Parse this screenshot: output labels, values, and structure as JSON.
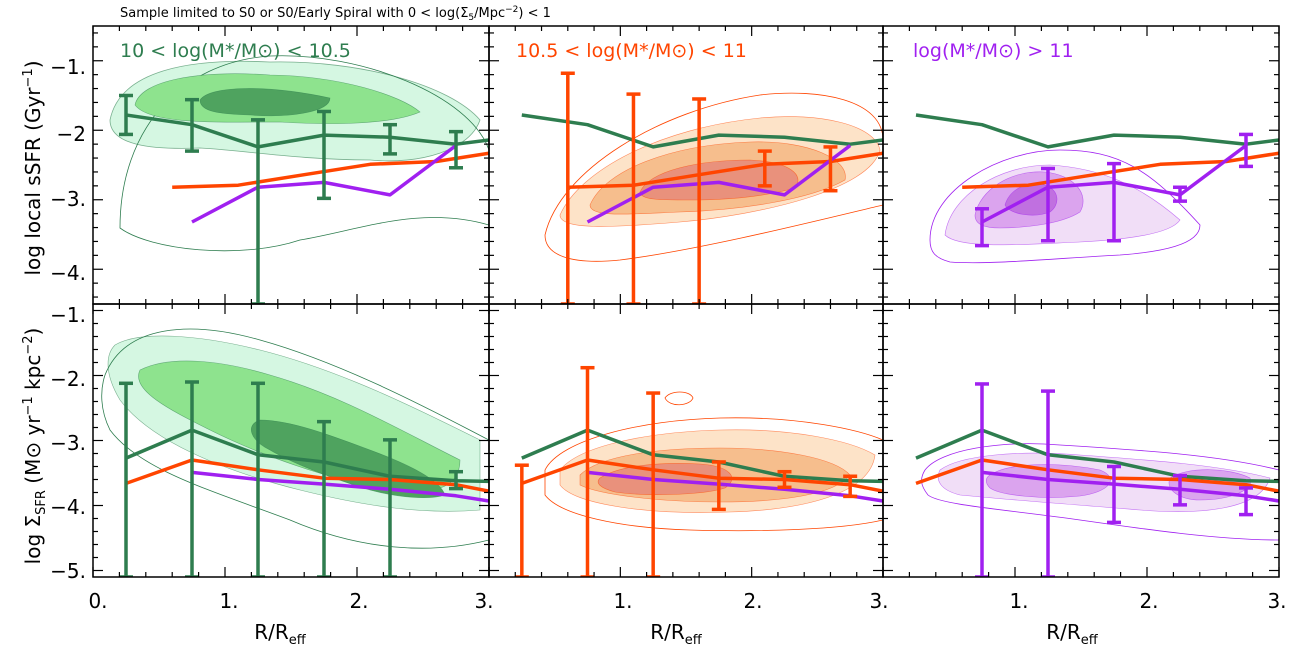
{
  "figure": {
    "title": "Sample limited to S0 or S0/Early Spiral with 0 < log(Σ5/Mpc⁻²) < 1",
    "title_parts": {
      "pre": "Sample limited to S0 or S0/Early Spiral with 0 < log(Σ",
      "sub": "5",
      "mid": "/Mpc",
      "sup": "−2",
      "post": ") < 1"
    }
  },
  "colors": {
    "green": "#2e7d4f",
    "orange": "#ff4500",
    "purple": "#a020f0",
    "green_fill_light": "#d5f7e2",
    "green_fill_mid": "#8ee38e",
    "green_fill_dark": "#4fa35f",
    "orange_fill_light": "#fde3c8",
    "orange_fill_mid": "#f6be8d",
    "orange_fill_dark": "#e9917c",
    "purple_fill_light": "#f1def7",
    "purple_fill_mid": "#dba4ee",
    "purple_fill_dark": "#c070e0"
  },
  "axes": {
    "xlabel_main": "R/R",
    "xlabel_sub": "eff",
    "x_ticks": [
      "0.",
      "1.",
      "2.",
      "3."
    ],
    "top_ylabel_main": "log local sSFR (Gyr",
    "top_ylabel_sup": "−1",
    "top_ylabel_end": ")",
    "top_y_ticks": [
      "−1.",
      "−2",
      "−3.",
      "−4."
    ],
    "bottom_ylabel_main": "log Σ",
    "bottom_ylabel_sub": "SFR",
    "bottom_ylabel_rest": " (M⊙ yr",
    "bottom_ylabel_sup1": "−1",
    "bottom_ylabel_rest2": " kpc",
    "bottom_ylabel_sup2": "−2",
    "bottom_ylabel_end": ")",
    "bottom_y_ticks": [
      "−1.",
      "−2.",
      "−3.",
      "−4.",
      "−5."
    ]
  },
  "panel_labels": [
    {
      "text": "10 < log(M*/M⊙) < 10.5",
      "color_key": "green"
    },
    {
      "text": "10.5 < log(M*/M⊙) < 11",
      "color_key": "orange"
    },
    {
      "text": "log(M*/M⊙) > 11",
      "color_key": "purple"
    }
  ],
  "chart_data": [
    {
      "type": "line",
      "row": "top",
      "column": 1,
      "xlim": [
        0,
        3
      ],
      "ylim": [
        -4.5,
        -0.5
      ],
      "xlabel": "R/Reff",
      "ylabel": "log local sSFR (Gyr^-1)",
      "series": [
        {
          "color_key": "green",
          "x": [
            0.25,
            0.75,
            1.25,
            1.75,
            2.25,
            2.75,
            3.0
          ],
          "y": [
            -1.78,
            -1.92,
            -2.24,
            -2.07,
            -2.1,
            -2.2,
            -2.14
          ]
        },
        {
          "color_key": "orange",
          "x": [
            0.6,
            1.1,
            1.6,
            2.1,
            2.6,
            3.0
          ],
          "y": [
            -2.82,
            -2.79,
            -2.64,
            -2.49,
            -2.45,
            -2.33
          ]
        },
        {
          "color_key": "purple",
          "x": [
            0.75,
            1.25,
            1.75,
            2.25,
            2.75
          ],
          "y": [
            -3.32,
            -2.82,
            -2.75,
            -2.93,
            -2.22
          ]
        }
      ],
      "errorbars": {
        "color_key": "green",
        "points": [
          {
            "x": 0.25,
            "y": -1.78,
            "lo": -2.06,
            "hi": -1.5
          },
          {
            "x": 0.75,
            "y": -1.92,
            "lo": -2.3,
            "hi": -1.56
          },
          {
            "x": 1.25,
            "y": -2.24,
            "lo": -4.5,
            "hi": -1.85
          },
          {
            "x": 1.75,
            "y": -2.07,
            "lo": -2.98,
            "hi": -1.73
          },
          {
            "x": 2.25,
            "y": -2.1,
            "lo": -2.34,
            "hi": -1.92
          },
          {
            "x": 2.75,
            "y": -2.2,
            "lo": -2.54,
            "hi": -2.02
          }
        ]
      },
      "contours": {
        "color_key": "green",
        "center": [
          1.6,
          -1.6
        ],
        "note": "density contours of individual spaxels"
      }
    },
    {
      "type": "line",
      "row": "top",
      "column": 2,
      "xlim": [
        0,
        3
      ],
      "ylim": [
        -4.5,
        -0.5
      ],
      "series": [
        {
          "color_key": "green",
          "x": [
            0.25,
            0.75,
            1.25,
            1.75,
            2.25,
            2.75,
            3.0
          ],
          "y": [
            -1.78,
            -1.92,
            -2.24,
            -2.07,
            -2.1,
            -2.2,
            -2.14
          ]
        },
        {
          "color_key": "orange",
          "x": [
            0.6,
            1.1,
            1.6,
            2.1,
            2.6,
            3.0
          ],
          "y": [
            -2.82,
            -2.79,
            -2.64,
            -2.49,
            -2.45,
            -2.33
          ]
        },
        {
          "color_key": "purple",
          "x": [
            0.75,
            1.25,
            1.75,
            2.25,
            2.75
          ],
          "y": [
            -3.32,
            -2.82,
            -2.75,
            -2.93,
            -2.22
          ]
        }
      ],
      "errorbars": {
        "color_key": "orange",
        "points": [
          {
            "x": 0.6,
            "y": -2.82,
            "lo": -4.5,
            "hi": -1.18
          },
          {
            "x": 1.1,
            "y": -2.79,
            "lo": -4.5,
            "hi": -1.48
          },
          {
            "x": 1.6,
            "y": -2.64,
            "lo": -4.5,
            "hi": -1.55
          },
          {
            "x": 2.1,
            "y": -2.49,
            "lo": -2.8,
            "hi": -2.3
          },
          {
            "x": 2.6,
            "y": -2.45,
            "lo": -2.87,
            "hi": -2.24
          }
        ]
      }
    },
    {
      "type": "line",
      "row": "top",
      "column": 3,
      "xlim": [
        0,
        3
      ],
      "ylim": [
        -4.5,
        -0.5
      ],
      "series": [
        {
          "color_key": "green",
          "x": [
            0.25,
            0.75,
            1.25,
            1.75,
            2.25,
            2.75,
            3.0
          ],
          "y": [
            -1.78,
            -1.92,
            -2.24,
            -2.07,
            -2.1,
            -2.2,
            -2.14
          ]
        },
        {
          "color_key": "orange",
          "x": [
            0.6,
            1.1,
            1.6,
            2.1,
            2.6,
            3.0
          ],
          "y": [
            -2.82,
            -2.79,
            -2.64,
            -2.49,
            -2.45,
            -2.33
          ]
        },
        {
          "color_key": "purple",
          "x": [
            0.75,
            1.25,
            1.75,
            2.25,
            2.75
          ],
          "y": [
            -3.32,
            -2.82,
            -2.75,
            -2.93,
            -2.22
          ]
        }
      ],
      "errorbars": {
        "color_key": "purple",
        "points": [
          {
            "x": 0.75,
            "y": -3.32,
            "lo": -3.66,
            "hi": -3.13
          },
          {
            "x": 1.25,
            "y": -2.82,
            "lo": -3.59,
            "hi": -2.55
          },
          {
            "x": 1.75,
            "y": -2.75,
            "lo": -3.59,
            "hi": -2.48
          },
          {
            "x": 2.25,
            "y": -2.93,
            "lo": -3.02,
            "hi": -2.82
          },
          {
            "x": 2.75,
            "y": -2.22,
            "lo": -2.52,
            "hi": -2.06
          }
        ]
      }
    },
    {
      "type": "line",
      "row": "bottom",
      "column": 1,
      "xlim": [
        0,
        3
      ],
      "ylim": [
        -5.1,
        -0.9
      ],
      "xlabel": "R/Reff",
      "ylabel": "log ΣSFR (M⊙ yr^-1 kpc^-2)",
      "series": [
        {
          "color_key": "green",
          "x": [
            0.25,
            0.75,
            1.25,
            1.75,
            2.25,
            2.75,
            3.0
          ],
          "y": [
            -3.27,
            -2.84,
            -3.22,
            -3.33,
            -3.55,
            -3.62,
            -3.63
          ]
        },
        {
          "color_key": "orange",
          "x": [
            0.25,
            0.75,
            1.25,
            1.75,
            2.25,
            2.75,
            3.0
          ],
          "y": [
            -3.66,
            -3.3,
            -3.45,
            -3.58,
            -3.6,
            -3.68,
            -3.78
          ]
        },
        {
          "color_key": "purple",
          "x": [
            0.75,
            1.25,
            1.75,
            2.25,
            2.75,
            3.0
          ],
          "y": [
            -3.49,
            -3.6,
            -3.67,
            -3.75,
            -3.85,
            -3.93
          ]
        }
      ],
      "errorbars": {
        "color_key": "green",
        "points": [
          {
            "x": 0.25,
            "y": -3.27,
            "lo": -5.1,
            "hi": -2.12
          },
          {
            "x": 0.75,
            "y": -2.84,
            "lo": -5.1,
            "hi": -2.1
          },
          {
            "x": 1.25,
            "y": -3.22,
            "lo": -5.1,
            "hi": -2.12
          },
          {
            "x": 1.75,
            "y": -3.33,
            "lo": -5.1,
            "hi": -2.71
          },
          {
            "x": 2.25,
            "y": -3.55,
            "lo": -5.1,
            "hi": -2.99
          },
          {
            "x": 2.75,
            "y": -3.62,
            "lo": -3.74,
            "hi": -3.48
          }
        ]
      }
    },
    {
      "type": "line",
      "row": "bottom",
      "column": 2,
      "xlim": [
        0,
        3
      ],
      "ylim": [
        -5.1,
        -0.9
      ],
      "series": [
        {
          "color_key": "green",
          "x": [
            0.25,
            0.75,
            1.25,
            1.75,
            2.25,
            2.75,
            3.0
          ],
          "y": [
            -3.27,
            -2.84,
            -3.22,
            -3.33,
            -3.55,
            -3.62,
            -3.63
          ]
        },
        {
          "color_key": "orange",
          "x": [
            0.25,
            0.75,
            1.25,
            1.75,
            2.25,
            2.75,
            3.0
          ],
          "y": [
            -3.66,
            -3.3,
            -3.45,
            -3.58,
            -3.6,
            -3.68,
            -3.78
          ]
        },
        {
          "color_key": "purple",
          "x": [
            0.75,
            1.25,
            1.75,
            2.25,
            2.75,
            3.0
          ],
          "y": [
            -3.49,
            -3.6,
            -3.67,
            -3.75,
            -3.85,
            -3.93
          ]
        }
      ],
      "errorbars": {
        "color_key": "orange",
        "points": [
          {
            "x": 0.25,
            "y": -3.66,
            "lo": -5.1,
            "hi": -3.38
          },
          {
            "x": 0.75,
            "y": -3.3,
            "lo": -5.1,
            "hi": -1.88
          },
          {
            "x": 1.25,
            "y": -3.45,
            "lo": -5.1,
            "hi": -2.27
          },
          {
            "x": 1.75,
            "y": -3.58,
            "lo": -4.06,
            "hi": -3.33
          },
          {
            "x": 2.25,
            "y": -3.6,
            "lo": -3.72,
            "hi": -3.48
          },
          {
            "x": 2.75,
            "y": -3.68,
            "lo": -3.86,
            "hi": -3.55
          }
        ]
      }
    },
    {
      "type": "line",
      "row": "bottom",
      "column": 3,
      "xlim": [
        0,
        3
      ],
      "ylim": [
        -5.1,
        -0.9
      ],
      "series": [
        {
          "color_key": "green",
          "x": [
            0.25,
            0.75,
            1.25,
            1.75,
            2.25,
            2.75,
            3.0
          ],
          "y": [
            -3.27,
            -2.84,
            -3.22,
            -3.33,
            -3.55,
            -3.62,
            -3.63
          ]
        },
        {
          "color_key": "orange",
          "x": [
            0.25,
            0.75,
            1.25,
            1.75,
            2.25,
            2.75,
            3.0
          ],
          "y": [
            -3.66,
            -3.3,
            -3.45,
            -3.58,
            -3.6,
            -3.68,
            -3.78
          ]
        },
        {
          "color_key": "purple",
          "x": [
            0.75,
            1.25,
            1.75,
            2.25,
            2.75,
            3.0
          ],
          "y": [
            -3.49,
            -3.6,
            -3.67,
            -3.75,
            -3.85,
            -3.93
          ]
        }
      ],
      "errorbars": {
        "color_key": "purple",
        "points": [
          {
            "x": 0.75,
            "y": -3.49,
            "lo": -5.1,
            "hi": -2.13
          },
          {
            "x": 1.25,
            "y": -3.6,
            "lo": -5.1,
            "hi": -2.24
          },
          {
            "x": 1.75,
            "y": -3.67,
            "lo": -4.26,
            "hi": -3.4
          },
          {
            "x": 2.25,
            "y": -3.75,
            "lo": -3.99,
            "hi": -3.54
          },
          {
            "x": 2.75,
            "y": -3.85,
            "lo": -4.14,
            "hi": -3.73
          }
        ]
      }
    }
  ]
}
